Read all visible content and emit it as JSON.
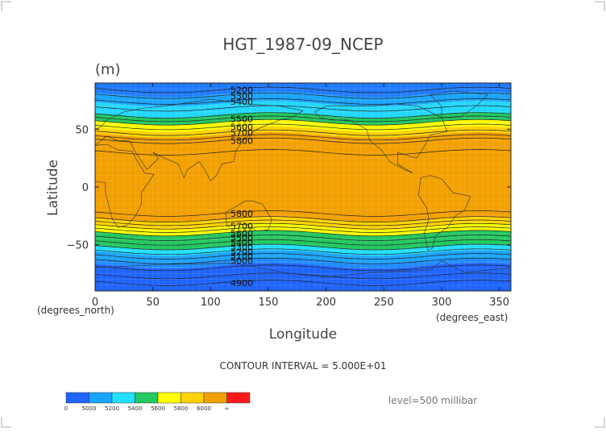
{
  "chart_data": {
    "type": "heatmap",
    "title": "HGT_1987-09_NCEP",
    "units_label": "(m)",
    "xlabel": "Longitude",
    "ylabel": "Latitude",
    "x_unit_label": "(degrees_east)",
    "y_unit_label": "(degrees_north)",
    "xlim": [
      0,
      360
    ],
    "ylim": [
      -90,
      90
    ],
    "x_ticks": [
      0,
      50,
      100,
      150,
      200,
      250,
      300,
      350
    ],
    "x_tick_labels": [
      "0",
      "50",
      "100",
      "150",
      "200",
      "250",
      "300",
      "350"
    ],
    "y_ticks": [
      50,
      0,
      -50
    ],
    "y_tick_labels": [
      "50",
      "0",
      "−50"
    ],
    "contour_interval_text": "CONTOUR INTERVAL = 5.000E+01",
    "level_text": "level=500 millibar",
    "colorbar": {
      "colors": [
        "#1f64ff",
        "#1aa4ff",
        "#22e0ff",
        "#22c860",
        "#ffff00",
        "#ffd200",
        "#f2a000",
        "#ff1a1a"
      ],
      "labels": [
        "0",
        "5000",
        "5200",
        "5400",
        "5600",
        "5800",
        "6000",
        "∞"
      ]
    },
    "band_lat_edges": [
      90,
      80,
      72,
      62,
      56,
      50,
      45,
      40,
      -28,
      -34,
      -40,
      -45,
      -52,
      -57,
      -64,
      -68,
      -90
    ],
    "band_colors": [
      "#1f7aff",
      "#1aa4ff",
      "#22d8ff",
      "#22c860",
      "#ffff00",
      "#ffd200",
      "#f2a000",
      "#f2a000",
      "#ffd200",
      "#ffff00",
      "#22c860",
      "#22c860",
      "#22e0ff",
      "#1aa4ff",
      "#1f8cff",
      "#1f64ff"
    ],
    "contour_labels": [
      {
        "text": "5200",
        "lon": 127,
        "lat": 84
      },
      {
        "text": "5300",
        "lon": 127,
        "lat": 79
      },
      {
        "text": "5400",
        "lon": 127,
        "lat": 74
      },
      {
        "text": "5500",
        "lon": 127,
        "lat": 59
      },
      {
        "text": "5600",
        "lon": 127,
        "lat": 52
      },
      {
        "text": "5700",
        "lon": 127,
        "lat": 47
      },
      {
        "text": "5800",
        "lon": 127,
        "lat": 40
      },
      {
        "text": "5800",
        "lon": 127,
        "lat": -23
      },
      {
        "text": "5700",
        "lon": 127,
        "lat": -34
      },
      {
        "text": "5600",
        "lon": 127,
        "lat": -40
      },
      {
        "text": "5500",
        "lon": 127,
        "lat": -44
      },
      {
        "text": "5400",
        "lon": 127,
        "lat": -48
      },
      {
        "text": "5300",
        "lon": 127,
        "lat": -52
      },
      {
        "text": "5200",
        "lon": 127,
        "lat": -56
      },
      {
        "text": "5100",
        "lon": 127,
        "lat": -60
      },
      {
        "text": "5000",
        "lon": 127,
        "lat": -64
      },
      {
        "text": "4900",
        "lon": 127,
        "lat": -83
      }
    ]
  }
}
